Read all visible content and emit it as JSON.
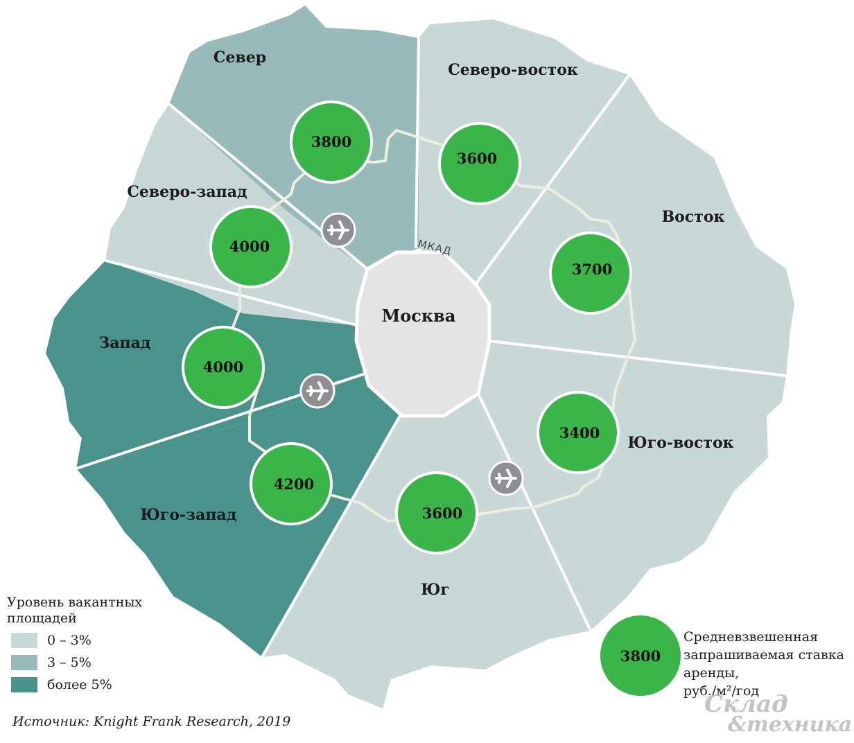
{
  "map": {
    "city": "Москва",
    "ring_road": "МКАД",
    "colors": {
      "low": "#c8d8d7",
      "mid": "#98bab9",
      "high": "#4a938c",
      "city": "#e4e4e4",
      "rate_circle": "#39b54a",
      "airport": "#8f8f93"
    },
    "sectors": [
      {
        "name": "Север",
        "vacancy_band": "3–5%",
        "rate": "3800"
      },
      {
        "name": "Северо-восток",
        "vacancy_band": "0–3%",
        "rate": "3600"
      },
      {
        "name": "Восток",
        "vacancy_band": "0–3%",
        "rate": "3700"
      },
      {
        "name": "Юго-восток",
        "vacancy_band": "0–3%",
        "rate": "3400"
      },
      {
        "name": "Юг",
        "vacancy_band": "0–3%",
        "rate": "3600"
      },
      {
        "name": "Юго-запад",
        "vacancy_band": "более 5%",
        "rate": "4200"
      },
      {
        "name": "Запад",
        "vacancy_band": "более 5%",
        "rate": "4000"
      },
      {
        "name": "Северо-запад",
        "vacancy_band": "0–3%",
        "rate": "4000"
      }
    ],
    "airport_icon": "airplane-icon",
    "airport_count": 3
  },
  "legend": {
    "title": "Уровень вакантных площадей",
    "items": [
      {
        "label": "0 – 3%",
        "color": "#c8d8d7"
      },
      {
        "label": "3 – 5%",
        "color": "#98bab9"
      },
      {
        "label": "более 5%",
        "color": "#4a938c"
      }
    ]
  },
  "rate_legend": {
    "sample": "3800",
    "text_lines": [
      "Средневзвешенная",
      "запрашиваемая ставка",
      "аренды,",
      "руб./м²/год"
    ]
  },
  "source": "Источник: Knight Frank Research, 2019",
  "watermark": {
    "line1": "Склад",
    "line2": "&техника"
  }
}
